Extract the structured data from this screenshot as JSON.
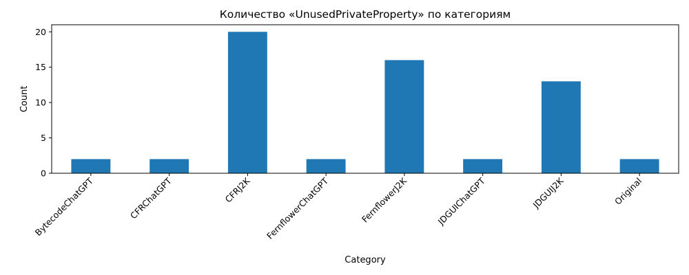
{
  "chart_data": {
    "type": "bar",
    "title": "Количество «UnusedPrivateProperty» по категориям",
    "xlabel": "Category",
    "ylabel": "Count",
    "categories": [
      "BytecodeChatGPT",
      "CFRChatGPT",
      "CFRJ2K",
      "FernflowerChatGPT",
      "FernflowerJ2K",
      "JDGUIChatGPT",
      "JDGUIJ2K",
      "Original"
    ],
    "values": [
      2,
      2,
      20,
      2,
      16,
      2,
      13,
      2
    ],
    "ylim": [
      0,
      21
    ],
    "yticks": [
      0,
      5,
      10,
      15,
      20
    ],
    "bar_color": "#1f77b4",
    "grid": false,
    "legend": "none",
    "xtick_rotation": 45
  }
}
